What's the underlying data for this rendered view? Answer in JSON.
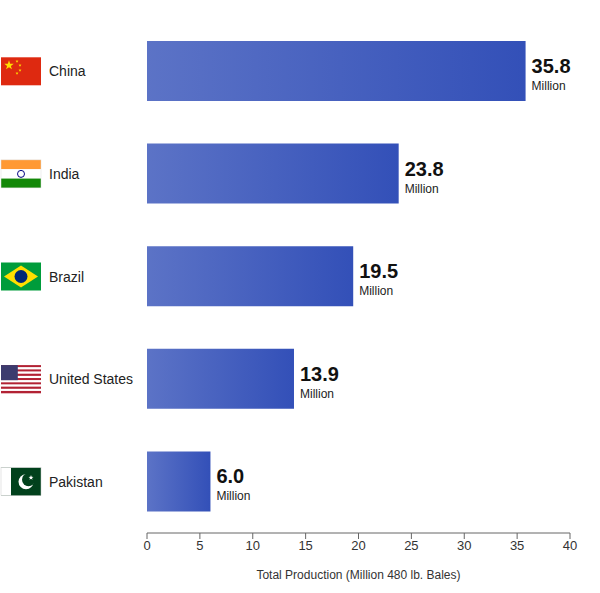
{
  "chart_data": {
    "type": "bar",
    "orientation": "horizontal",
    "categories": [
      "China",
      "India",
      "Brazil",
      "United States",
      "Pakistan"
    ],
    "values": [
      35.8,
      23.8,
      19.5,
      13.9,
      6.0
    ],
    "value_labels": [
      "35.8 Million",
      "23.8 Million",
      "19.5 Million",
      "13.9 Million",
      "6.0 Million"
    ],
    "data_labels": true,
    "color": "#3350b8",
    "xlabel": "Total Production (Million 480 lb. Bales)",
    "xlim": [
      0,
      40
    ],
    "xticks": [
      0,
      5,
      10,
      15,
      20,
      25,
      30,
      35,
      40
    ],
    "grid": false
  }
}
